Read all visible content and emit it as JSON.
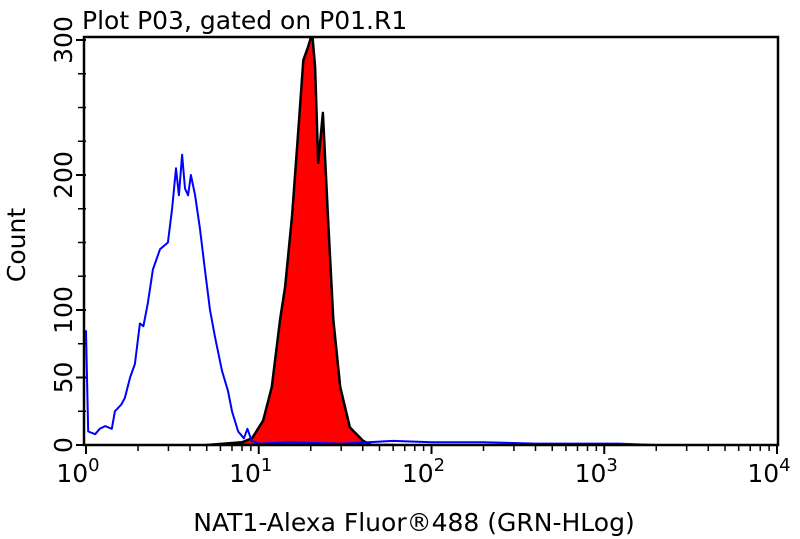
{
  "chart_data": {
    "type": "area",
    "title": "Plot P03, gated on P01.R1",
    "xlabel": "NAT1-Alexa Fluor®488 (GRN-HLog)",
    "ylabel": "Count",
    "xscale": "log",
    "xlim": [
      1,
      10000
    ],
    "ylim": [
      0,
      300
    ],
    "x_ticks": [
      {
        "base": "10",
        "exp": "0",
        "value": 1
      },
      {
        "base": "10",
        "exp": "1",
        "value": 10
      },
      {
        "base": "10",
        "exp": "2",
        "value": 100
      },
      {
        "base": "10",
        "exp": "3",
        "value": 1000
      },
      {
        "base": "10",
        "exp": "4",
        "value": 10000
      }
    ],
    "y_ticks": [
      {
        "label": "0",
        "value": 0
      },
      {
        "label": "50",
        "value": 50
      },
      {
        "label": "100",
        "value": 100
      },
      {
        "label": "200",
        "value": 200
      },
      {
        "label": "300",
        "value": 300
      }
    ],
    "grid": false,
    "series": [
      {
        "style": "outline",
        "color": "#0000ff",
        "x": [
          1.0,
          1.01,
          1.03,
          1.13,
          1.2,
          1.29,
          1.41,
          1.47,
          1.6,
          1.68,
          1.8,
          1.92,
          2.05,
          2.15,
          2.28,
          2.44,
          2.68,
          2.98,
          3.15,
          3.32,
          3.45,
          3.6,
          3.74,
          3.9,
          4.05,
          4.28,
          4.57,
          4.88,
          5.22,
          5.58,
          6.13,
          6.64,
          7.0,
          7.6,
          8.2,
          8.6,
          9.1,
          10,
          15,
          30,
          60,
          100,
          200,
          400,
          800,
          1200,
          2000
        ],
        "y": [
          85,
          60,
          10,
          8,
          12,
          14,
          12,
          25,
          30,
          35,
          50,
          60,
          90,
          88,
          105,
          130,
          145,
          150,
          175,
          205,
          185,
          215,
          190,
          185,
          200,
          185,
          160,
          130,
          100,
          80,
          55,
          40,
          25,
          10,
          5,
          12,
          3,
          1,
          2,
          1,
          3,
          2,
          2,
          1,
          1,
          1,
          0
        ]
      },
      {
        "style": "filled",
        "color": "#ff0000",
        "edge_color": "#000000",
        "x": [
          5,
          8,
          9.14,
          10.6,
          11.9,
          13.3,
          14.2,
          15.6,
          17.1,
          18.1,
          19.3,
          20.4,
          21.2,
          22.1,
          23.5,
          25.2,
          27.0,
          29.6,
          33.7,
          40.2,
          45,
          60
        ],
        "y": [
          0,
          2,
          5,
          18,
          43,
          93,
          117,
          170,
          240,
          285,
          295,
          305,
          280,
          209,
          246,
          167,
          93,
          43,
          13,
          3,
          0,
          0
        ]
      }
    ]
  }
}
